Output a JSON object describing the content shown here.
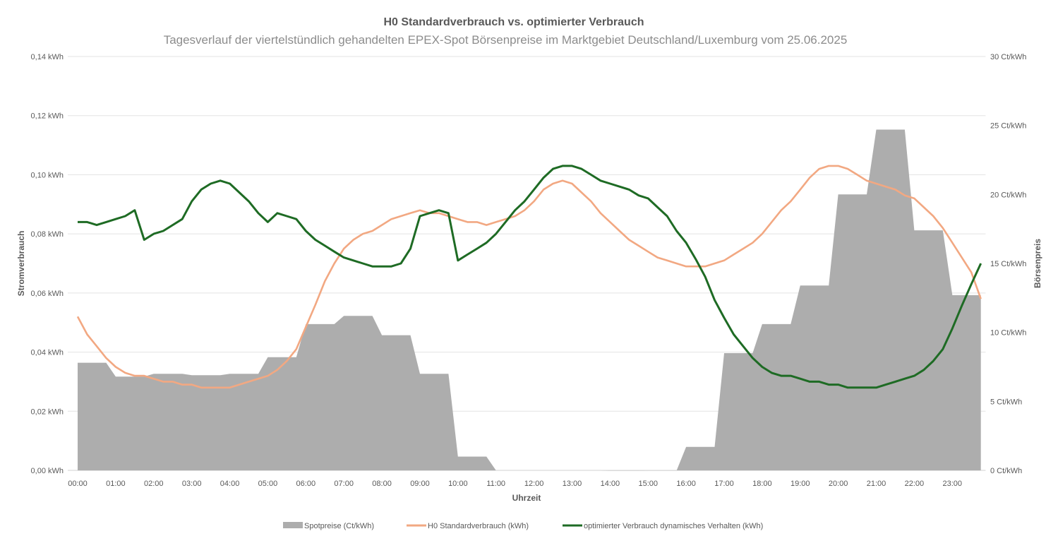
{
  "chart_data": {
    "type": "combo-area-line",
    "title": "H0 Standardverbrauch vs. optimierter Verbrauch",
    "subtitle": "Tagesverlauf der viertelstündlich gehandelten EPEX-Spot Börsenpreise im Marktgebiet Deutschland/Luxemburg vom 25.06.2025",
    "xlabel": "Uhrzeit",
    "ylabel_left": "Stromverbrauch",
    "ylabel_right": "Börsenpreis",
    "ylim_left": [
      0,
      0.14
    ],
    "ylim_right": [
      0,
      30
    ],
    "yticks_left": [
      "0,00 kWh",
      "0,02 kWh",
      "0,04 kWh",
      "0,06 kWh",
      "0,08 kWh",
      "0,10 kWh",
      "0,12 kWh",
      "0,14 kWh"
    ],
    "yticks_right": [
      "0 Ct/kWh",
      "5 Ct/kWh",
      "10 Ct/kWh",
      "15 Ct/kWh",
      "20 Ct/kWh",
      "25 Ct/kWh",
      "30 Ct/kWh"
    ],
    "xticks": [
      "00:00",
      "01:00",
      "02:00",
      "03:00",
      "04:00",
      "05:00",
      "06:00",
      "07:00",
      "08:00",
      "09:00",
      "10:00",
      "11:00",
      "12:00",
      "13:00",
      "14:00",
      "15:00",
      "16:00",
      "17:00",
      "18:00",
      "19:00",
      "20:00",
      "21:00",
      "22:00",
      "23:00"
    ],
    "x_interval": "15 min, 00:00–23:45",
    "grid": true,
    "legend_position": "bottom",
    "series": [
      {
        "name": "Spotpreise (Ct/kWh)",
        "type": "area",
        "axis": "right",
        "color": "#adadad",
        "hourly_values": [
          7.8,
          6.8,
          7.0,
          6.9,
          7.0,
          8.2,
          10.6,
          11.2,
          9.8,
          7.0,
          1.0,
          0,
          0,
          0,
          -0.02,
          -0.01,
          1.7,
          8.5,
          10.6,
          13.4,
          20.0,
          24.7,
          17.4,
          12.7
        ]
      },
      {
        "name": "H0 Standardverbrauch (kWh)",
        "type": "line",
        "axis": "left",
        "color": "#f2a882",
        "values": [
          0.052,
          0.046,
          0.042,
          0.038,
          0.035,
          0.033,
          0.032,
          0.032,
          0.031,
          0.03,
          0.03,
          0.029,
          0.029,
          0.028,
          0.028,
          0.028,
          0.028,
          0.029,
          0.03,
          0.031,
          0.032,
          0.034,
          0.037,
          0.041,
          0.0485,
          0.056,
          0.064,
          0.07,
          0.075,
          0.078,
          0.08,
          0.081,
          0.083,
          0.085,
          0.086,
          0.087,
          0.088,
          0.087,
          0.087,
          0.086,
          0.085,
          0.084,
          0.084,
          0.083,
          0.084,
          0.085,
          0.086,
          0.088,
          0.091,
          0.095,
          0.097,
          0.098,
          0.097,
          0.094,
          0.091,
          0.087,
          0.084,
          0.081,
          0.078,
          0.076,
          0.074,
          0.072,
          0.071,
          0.07,
          0.069,
          0.069,
          0.069,
          0.07,
          0.071,
          0.073,
          0.075,
          0.077,
          0.08,
          0.084,
          0.088,
          0.091,
          0.095,
          0.099,
          0.102,
          0.103,
          0.103,
          0.102,
          0.1,
          0.098,
          0.097,
          0.096,
          0.095,
          0.093,
          0.092,
          0.089,
          0.086,
          0.082,
          0.077,
          0.072,
          0.067,
          0.058
        ]
      },
      {
        "name": "optimierter Verbrauch dynamisches Verhalten (kWh)",
        "type": "line",
        "axis": "left",
        "color": "#1e6b24",
        "values": [
          0.084,
          0.084,
          0.083,
          0.084,
          0.085,
          0.086,
          0.088,
          0.078,
          0.08,
          0.081,
          0.083,
          0.085,
          0.091,
          0.095,
          0.097,
          0.098,
          0.097,
          0.094,
          0.091,
          0.087,
          0.084,
          0.087,
          0.086,
          0.085,
          0.081,
          0.078,
          0.076,
          0.074,
          0.072,
          0.071,
          0.07,
          0.069,
          0.069,
          0.069,
          0.07,
          0.075,
          0.086,
          0.087,
          0.088,
          0.087,
          0.071,
          0.073,
          0.075,
          0.077,
          0.08,
          0.084,
          0.088,
          0.091,
          0.095,
          0.099,
          0.102,
          0.103,
          0.103,
          0.102,
          0.1,
          0.098,
          0.097,
          0.096,
          0.095,
          0.093,
          0.092,
          0.089,
          0.086,
          0.081,
          0.077,
          0.0715,
          0.0655,
          0.0576,
          0.0516,
          0.046,
          0.042,
          0.038,
          0.035,
          0.033,
          0.032,
          0.032,
          0.031,
          0.03,
          0.03,
          0.029,
          0.029,
          0.028,
          0.028,
          0.028,
          0.028,
          0.029,
          0.03,
          0.031,
          0.032,
          0.034,
          0.037,
          0.041,
          0.048,
          0.0557,
          0.063,
          0.07
        ]
      }
    ]
  }
}
